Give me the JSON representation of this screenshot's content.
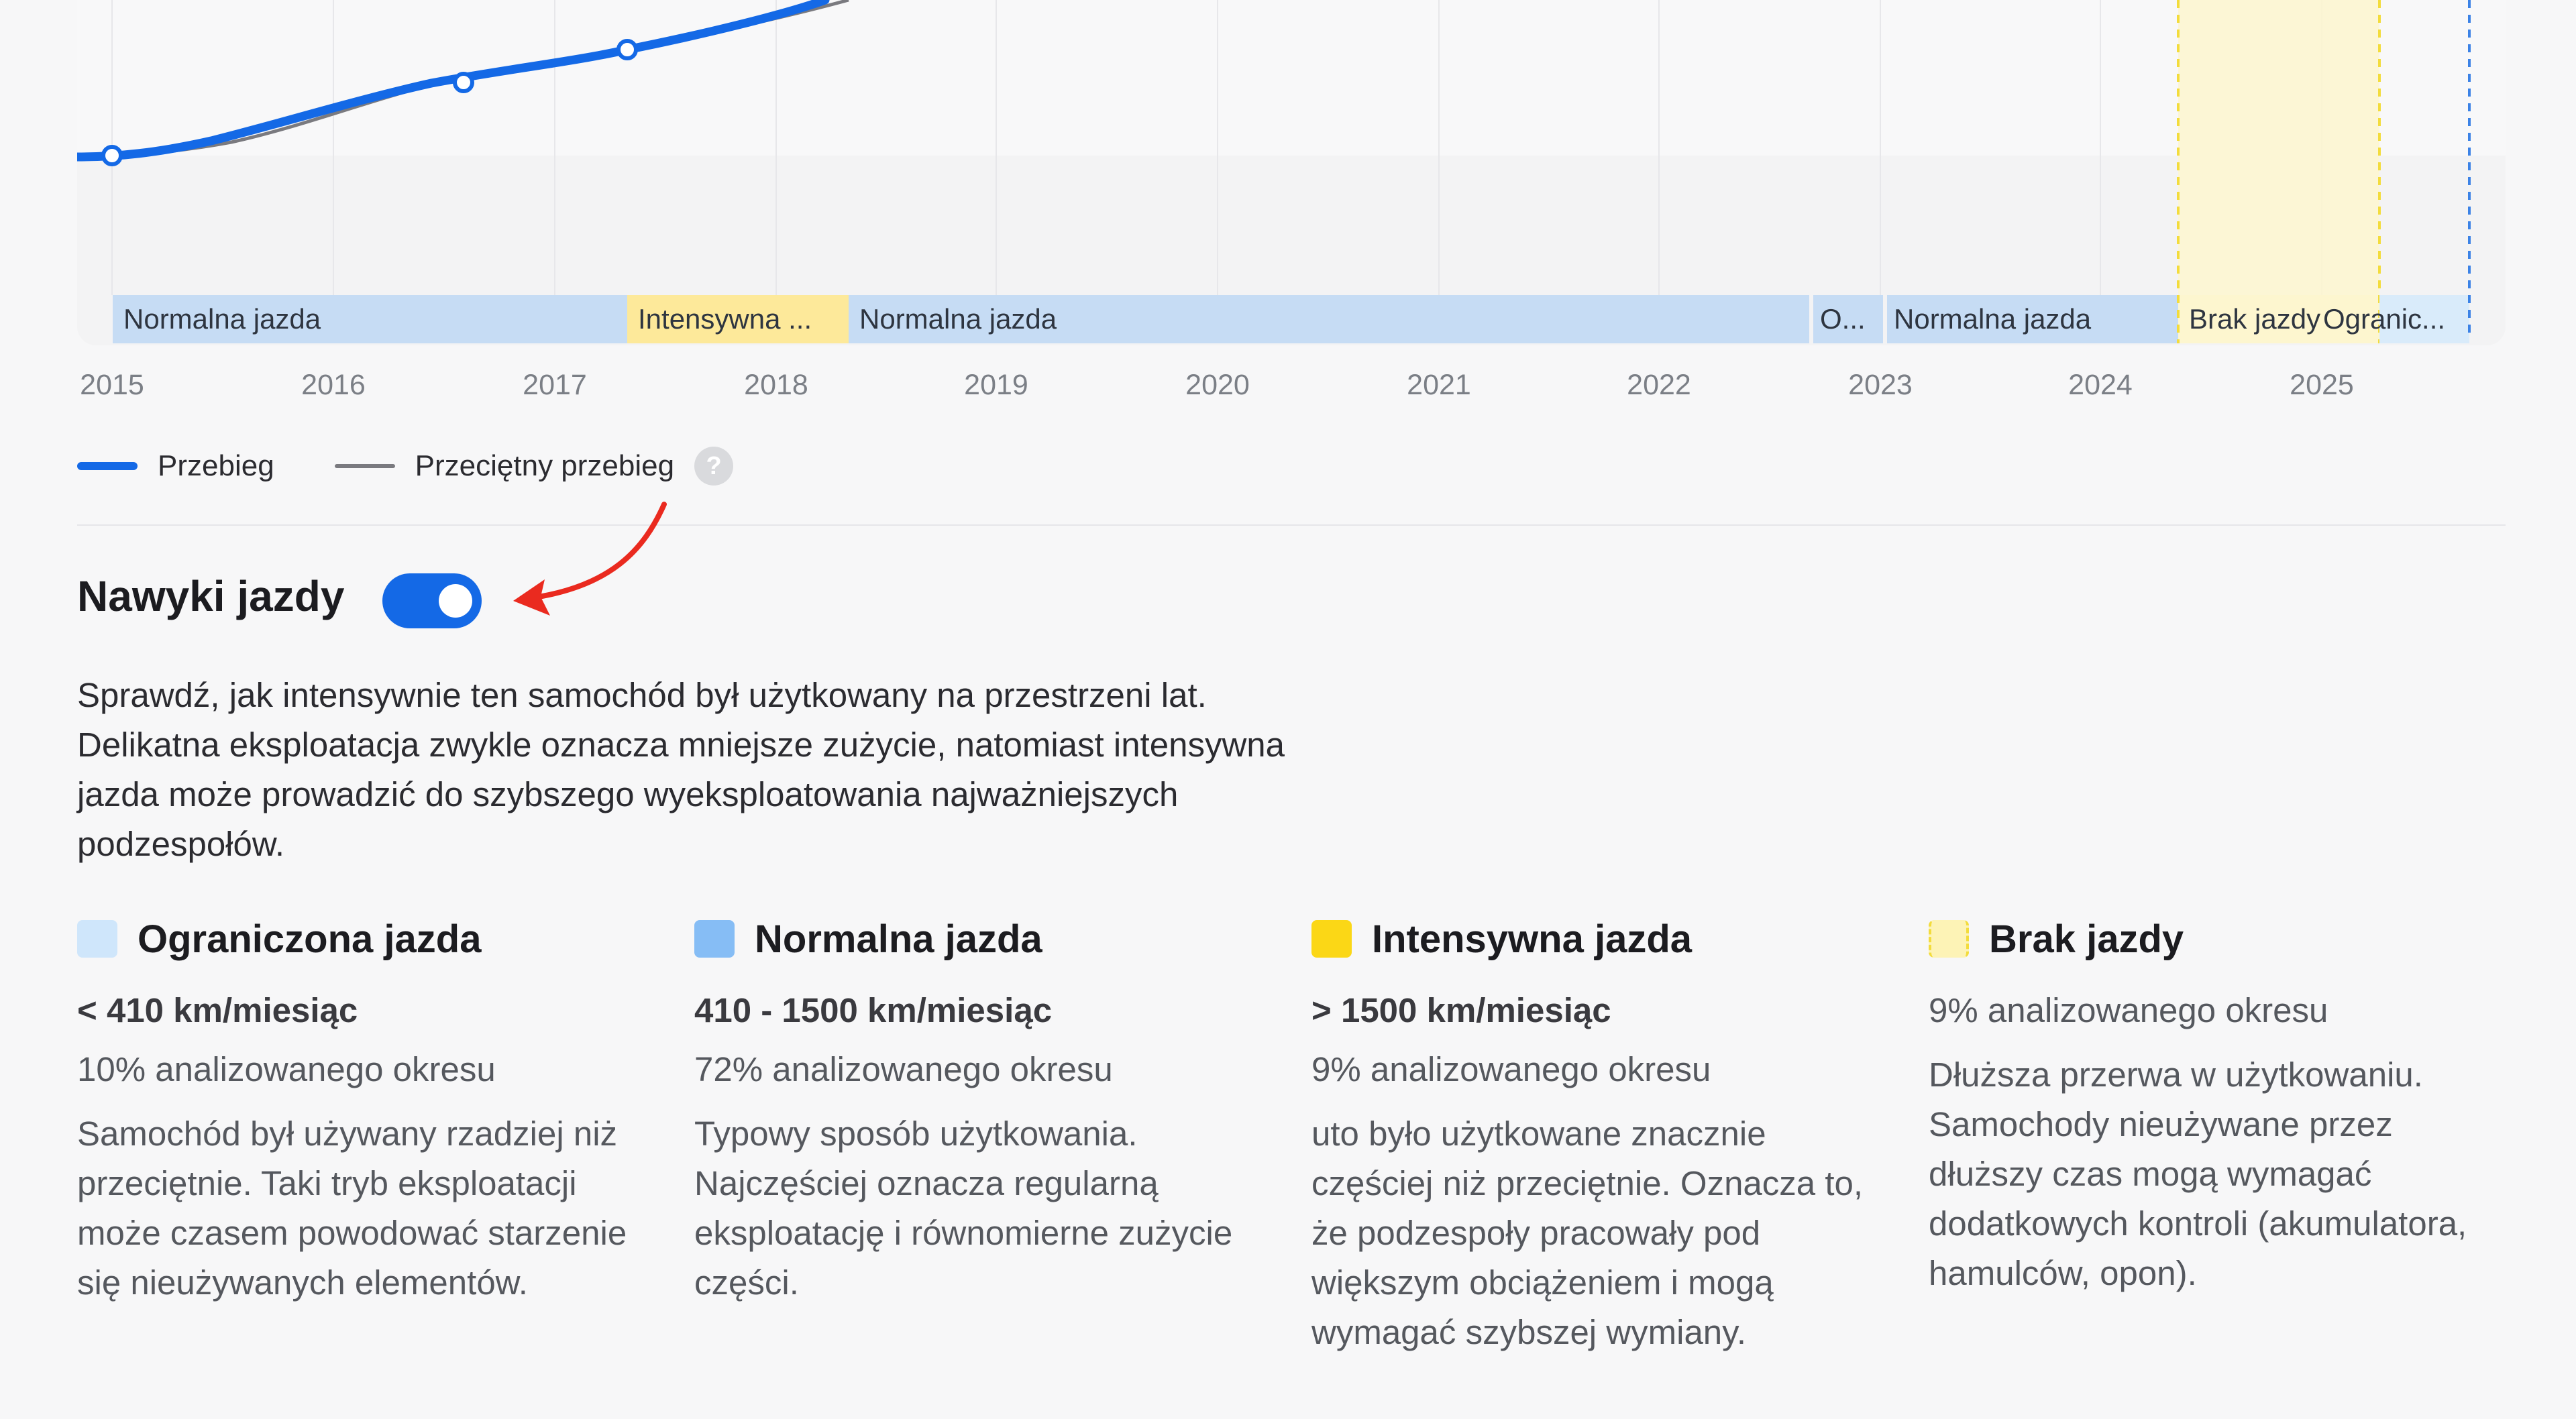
{
  "chart": {
    "segments": [
      {
        "label": "Normalna jazda",
        "kind": "normal"
      },
      {
        "label": "Intensywna ...",
        "kind": "intense"
      },
      {
        "label": "Normalna jazda",
        "kind": "normal"
      },
      {
        "label": "O...",
        "kind": "normal"
      },
      {
        "label": "Normalna jazda",
        "kind": "normal"
      },
      {
        "label": "Brak jazdy",
        "kind": "none"
      },
      {
        "label": "Ogranic...",
        "kind": "limited"
      }
    ],
    "years": [
      "2015",
      "2016",
      "2017",
      "2018",
      "2019",
      "2020",
      "2021",
      "2022",
      "2023",
      "2024",
      "2025"
    ],
    "colors": {
      "mileage_line": "#1469e6",
      "average_line": "#7a7a7f",
      "normal": "#c6dcf4",
      "intense": "#fde99a",
      "none": "#fdf6cf",
      "limited": "#d9ebfa",
      "none_border": "#f3dc3c",
      "marker_line": "#3b82e6"
    }
  },
  "legend": {
    "mileage_label": "Przebieg",
    "average_label": "Przeciętny przebieg",
    "help_icon": "?"
  },
  "habits": {
    "title": "Nawyki jazdy",
    "toggle_on": true,
    "description": "Sprawdź, jak intensywnie ten samochód był użytkowany na przestrzeni lat. Delikatna eksploatacja zwykle oznacza mniejsze zużycie, natomiast intensywna jazda może prowadzić do szybszego wyeksploatowania najważniejszych podzespołów.",
    "categories": [
      {
        "title": "Ograniczona jazda",
        "range": "< 410 km/miesiąc",
        "share": "10% analizowanego okresu",
        "description": "Samochód był używany rzadziej niż przeciętnie. Taki tryb eksploatacji może czasem powodować starzenie się nieużywanych elementów.",
        "color": "#cfe6fb"
      },
      {
        "title": "Normalna jazda",
        "range": "410 - 1500 km/miesiąc",
        "share": "72% analizowanego okresu",
        "description": "Typowy sposób użytkowania. Najczęściej oznacza regularną eksploatację i równomierne zużycie części.",
        "color": "#86bdf5"
      },
      {
        "title": "Intensywna jazda",
        "range": "> 1500 km/miesiąc",
        "share": "9% analizowanego okresu",
        "description": "uto było użytkowane znacznie częściej niż przeciętnie. Oznacza to, że podzespoły pracowały pod większym obciążeniem i mogą wymagać szybszej wymiany.",
        "color": "#fbd716"
      },
      {
        "title": "Brak jazdy",
        "range": "",
        "share": "9% analizowanego okresu",
        "description": "Dłuższa przerwa w użytkowaniu. Samochody nieużywane przez dłuższy czas mogą wymagać dodatkowych kontroli (akumulatora, hamulców, opon).",
        "color": "#fdf3b6"
      }
    ]
  }
}
